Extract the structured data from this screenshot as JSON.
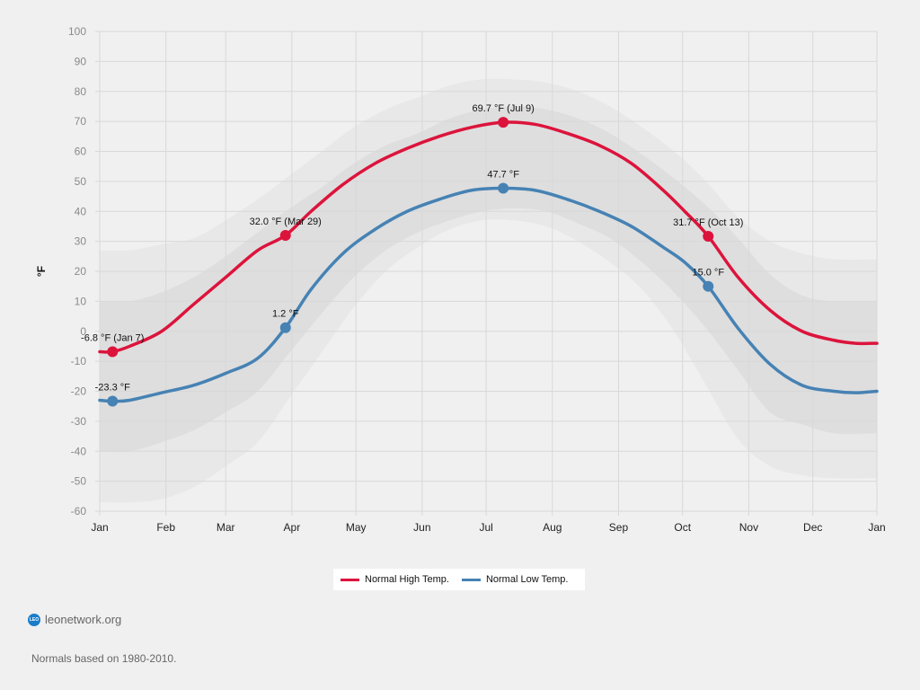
{
  "chart_data": {
    "type": "line",
    "title": "",
    "xlabel": "",
    "ylabel": "°F",
    "ylim": [
      -60,
      100
    ],
    "yticks": [
      100,
      90,
      80,
      70,
      60,
      50,
      40,
      30,
      20,
      10,
      0,
      -10,
      -20,
      -30,
      -40,
      -50,
      -60
    ],
    "x_tick_labels": [
      "Jan",
      "Feb",
      "Mar",
      "Apr",
      "May",
      "Jun",
      "Jul",
      "Aug",
      "Sep",
      "Oct",
      "Nov",
      "Dec",
      "Jan"
    ],
    "grid": true,
    "legend_position": "bottom-center",
    "x_unit": "day_of_year",
    "series": [
      {
        "name": "Normal High Temp.",
        "color": "#dc143c",
        "x": [
          1,
          7,
          15,
          30,
          45,
          60,
          75,
          88,
          100,
          115,
          130,
          145,
          160,
          175,
          190,
          205,
          220,
          235,
          250,
          265,
          275,
          286,
          300,
          315,
          330,
          345,
          355,
          365
        ],
        "values": [
          -6.8,
          -6.8,
          -5,
          0,
          9,
          18,
          27,
          32,
          40,
          49,
          56,
          61,
          65,
          68,
          69.7,
          69,
          66,
          62,
          56,
          47,
          40,
          31.7,
          18,
          7,
          0,
          -3,
          -4,
          -4
        ]
      },
      {
        "name": "Normal Low Temp.",
        "color": "#4682b4",
        "x": [
          1,
          7,
          15,
          30,
          45,
          60,
          75,
          88,
          100,
          115,
          130,
          145,
          160,
          175,
          190,
          205,
          220,
          235,
          250,
          265,
          275,
          286,
          300,
          315,
          330,
          345,
          355,
          365
        ],
        "values": [
          -23,
          -23.3,
          -23,
          -20.5,
          -18,
          -14,
          -9,
          1.2,
          14,
          26,
          34,
          40,
          44,
          47,
          47.7,
          47,
          44,
          40,
          35,
          28,
          23,
          15,
          1,
          -11,
          -18,
          -20,
          -20.5,
          -20
        ]
      }
    ],
    "bands": [
      {
        "name": "outer-range",
        "color": "#e8e8e8",
        "x": [
          1,
          15,
          30,
          45,
          60,
          75,
          90,
          105,
          120,
          135,
          150,
          165,
          180,
          195,
          210,
          225,
          240,
          255,
          270,
          285,
          300,
          315,
          330,
          345,
          365
        ],
        "upper": [
          27,
          27,
          29,
          31,
          37,
          44,
          52,
          60,
          68,
          74,
          78,
          82,
          84,
          84,
          83,
          80,
          75,
          68,
          60,
          50,
          38,
          30,
          26,
          24,
          24
        ],
        "lower": [
          -57,
          -57,
          -56,
          -52,
          -45,
          -37,
          -22,
          -7,
          8,
          20,
          28,
          34,
          37,
          37,
          35,
          30,
          23,
          14,
          0,
          -18,
          -36,
          -45,
          -48,
          -49,
          -49
        ]
      },
      {
        "name": "inner-range",
        "color": "#dedede",
        "x": [
          1,
          15,
          30,
          45,
          60,
          75,
          90,
          105,
          120,
          135,
          150,
          165,
          180,
          195,
          210,
          225,
          240,
          255,
          270,
          285,
          300,
          315,
          330,
          345,
          365
        ],
        "upper": [
          10,
          10,
          13,
          18,
          25,
          33,
          41,
          48,
          56,
          62,
          66,
          71,
          74,
          75,
          74,
          71,
          66,
          59,
          51,
          42,
          31,
          19,
          12,
          10,
          10
        ],
        "lower": [
          -40,
          -40,
          -37,
          -33,
          -27,
          -20,
          -7,
          6,
          18,
          27,
          33,
          37,
          40,
          41,
          40,
          36,
          31,
          23,
          13,
          1,
          -13,
          -27,
          -31,
          -34,
          -34
        ]
      }
    ],
    "annotations": [
      {
        "series": 0,
        "x": 7,
        "y": -6.8,
        "label": "-6.8 °F (Jan 7)"
      },
      {
        "series": 1,
        "x": 7,
        "y": -23.3,
        "label": "-23.3 °F"
      },
      {
        "series": 0,
        "x": 88,
        "y": 32.0,
        "label": "32.0 °F (Mar 29)"
      },
      {
        "series": 1,
        "x": 88,
        "y": 1.2,
        "label": "1.2 °F"
      },
      {
        "series": 0,
        "x": 190,
        "y": 69.7,
        "label": "69.7 °F (Jul 9)"
      },
      {
        "series": 1,
        "x": 190,
        "y": 47.7,
        "label": "47.7 °F"
      },
      {
        "series": 0,
        "x": 286,
        "y": 31.7,
        "label": "31.7 °F (Oct 13)"
      },
      {
        "series": 1,
        "x": 286,
        "y": 15.0,
        "label": "15.0 °F"
      }
    ]
  },
  "legend": {
    "items": [
      {
        "label": "Normal High Temp.",
        "color": "#dc143c"
      },
      {
        "label": "Normal Low Temp.",
        "color": "#4682b4"
      }
    ]
  },
  "credit": {
    "logo_text": "LEO",
    "label": "leonetwork.org"
  },
  "note": "Normals based on 1980-2010."
}
